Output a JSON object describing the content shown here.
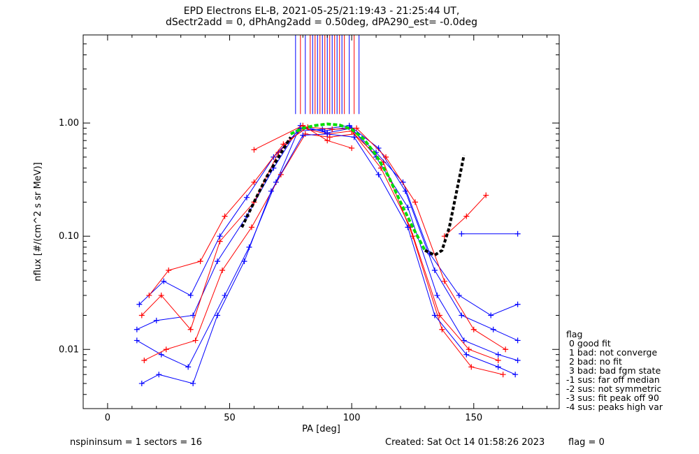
{
  "header": {
    "line1": "EPD Electrons EL-B, 2021-05-25/21:19:43 - 21:25:44 UT,",
    "line2": "dSectr2add = 0, dPhAng2add = 0.50deg, dPA290_est=  -0.0deg"
  },
  "footer": {
    "nspin": "nspininsum =  1  sectors = 16",
    "created": "Created: Sat Oct 14 01:58:26 2023",
    "flag": "flag = 0"
  },
  "legend": {
    "title": "flag",
    "items": [
      " 0 good fit",
      " 1 bad: not converge",
      " 2 bad: no fit",
      " 3 bad: bad fgm state",
      "-1 sus: far off median",
      "-2 sus: not symmetric",
      "-3 sus: fit peak off 90",
      "-4 sus: peaks high var"
    ]
  },
  "colors": {
    "series_a": "#0000ff",
    "series_b": "#ff0000",
    "fit_curve": "#00dd00",
    "extrapolation": "#000000"
  },
  "chart_data": {
    "type": "line",
    "title": "EPD Electrons EL-B, 2021-05-25/21:19:43 - 21:25:44 UT,",
    "xlabel": "PA [deg]",
    "ylabel": "nflux [#/(cm^2 s sr MeV)]",
    "xlim": [
      -10,
      185
    ],
    "ylim": [
      0.003,
      6
    ],
    "yscale": "log",
    "xticks": [
      0,
      50,
      100,
      150
    ],
    "xtick_labels": [
      "0",
      "50",
      "100",
      "150"
    ],
    "yticks": [
      0.01,
      0.1,
      1.0
    ],
    "ytick_labels": [
      "0.01",
      "0.10",
      "1.00"
    ],
    "grid": false,
    "legend_position": "outside-right-bottom",
    "series": [
      {
        "color": "#0000ff",
        "marker": "+",
        "x": [
          12,
          20,
          35,
          45,
          57,
          68,
          79,
          90,
          100,
          110,
          123,
          135,
          146,
          160,
          168
        ],
        "y": [
          0.015,
          0.018,
          0.02,
          0.06,
          0.15,
          0.4,
          0.95,
          0.82,
          0.9,
          0.5,
          0.18,
          0.03,
          0.012,
          0.009,
          0.008
        ]
      },
      {
        "color": "#ff0000",
        "marker": "+",
        "x": [
          14,
          22,
          34,
          46,
          60,
          70,
          80,
          90,
          100,
          112,
          124,
          136,
          148,
          160
        ],
        "y": [
          0.02,
          0.03,
          0.015,
          0.09,
          0.2,
          0.55,
          0.9,
          0.8,
          0.85,
          0.4,
          0.12,
          0.02,
          0.01,
          0.008
        ]
      },
      {
        "color": "#0000ff",
        "marker": "+",
        "x": [
          12,
          22,
          33,
          48,
          58,
          69,
          78,
          88,
          99,
          111,
          122,
          134,
          145,
          158,
          168
        ],
        "y": [
          0.012,
          0.009,
          0.007,
          0.03,
          0.08,
          0.3,
          0.85,
          0.88,
          0.95,
          0.6,
          0.25,
          0.05,
          0.02,
          0.015,
          0.012
        ]
      },
      {
        "color": "#ff0000",
        "marker": "+",
        "x": [
          15,
          24,
          36,
          47,
          59,
          71,
          81,
          91,
          101,
          113,
          125,
          137,
          149,
          162
        ],
        "y": [
          0.008,
          0.01,
          0.012,
          0.05,
          0.12,
          0.35,
          0.8,
          0.75,
          0.8,
          0.45,
          0.1,
          0.015,
          0.007,
          0.006
        ]
      },
      {
        "color": "#0000ff",
        "marker": "+",
        "x": [
          13,
          23,
          34,
          46,
          57,
          68,
          79,
          89,
          99,
          110,
          121,
          132,
          144,
          157,
          168
        ],
        "y": [
          0.025,
          0.04,
          0.03,
          0.1,
          0.22,
          0.5,
          0.9,
          0.85,
          0.92,
          0.55,
          0.3,
          0.07,
          0.03,
          0.02,
          0.025
        ]
      },
      {
        "color": "#0000ff",
        "marker": "+",
        "x": [
          14,
          21,
          35,
          45,
          56,
          67,
          80,
          90,
          101,
          111,
          123,
          134,
          147,
          160,
          167
        ],
        "y": [
          0.005,
          0.006,
          0.005,
          0.02,
          0.06,
          0.25,
          0.78,
          0.8,
          0.75,
          0.35,
          0.12,
          0.02,
          0.009,
          0.007,
          0.006
        ]
      },
      {
        "color": "#ff0000",
        "marker": "+",
        "x": [
          17,
          25,
          38,
          48,
          60,
          72,
          82,
          92,
          102,
          114,
          126,
          138,
          150,
          163
        ],
        "y": [
          0.03,
          0.05,
          0.06,
          0.15,
          0.3,
          0.65,
          0.92,
          0.88,
          0.9,
          0.5,
          0.2,
          0.04,
          0.015,
          0.01
        ]
      },
      {
        "color": "#ff0000",
        "marker": "+",
        "x": [
          60,
          80,
          90,
          100
        ],
        "y": [
          0.58,
          0.95,
          0.7,
          0.6
        ]
      },
      {
        "color": "#ff0000",
        "marker": "+",
        "x": [
          138,
          147,
          155
        ],
        "y": [
          0.1,
          0.15,
          0.23
        ]
      },
      {
        "color": "#0000ff",
        "marker": "+",
        "x": [
          145,
          168
        ],
        "y": [
          0.105,
          0.105
        ]
      }
    ],
    "fit_curve": {
      "color": "#00dd00",
      "style": "dashed",
      "x": [
        75,
        80,
        85,
        90,
        95,
        100,
        105,
        110,
        115,
        120,
        125,
        130
      ],
      "y": [
        0.8,
        0.9,
        0.95,
        0.98,
        0.96,
        0.88,
        0.72,
        0.52,
        0.34,
        0.2,
        0.12,
        0.075
      ]
    },
    "extrapolation_curve": {
      "color": "#000000",
      "style": "dashed",
      "x": [
        55,
        60,
        65,
        70,
        75,
        130,
        134,
        137,
        140,
        143,
        146
      ],
      "y": [
        0.12,
        0.2,
        0.33,
        0.5,
        0.75,
        0.075,
        0.068,
        0.075,
        0.12,
        0.25,
        0.52
      ]
    },
    "vertical_marks": {
      "colors": [
        "#0000ff",
        "#ff0000"
      ],
      "x": [
        77,
        79,
        81,
        83,
        84,
        85,
        86,
        87,
        88,
        89,
        90,
        91,
        92,
        93,
        94,
        95,
        96,
        97,
        99,
        101,
        103
      ]
    }
  }
}
